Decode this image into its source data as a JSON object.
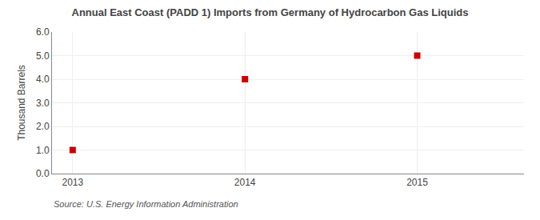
{
  "chart_data": {
    "type": "scatter",
    "title": "Annual East Coast (PADD 1) Imports from Germany of Hydrocarbon Gas Liquids",
    "ylabel": "Thousand Barrels",
    "annotations": [
      "Source: U.S. Energy Information Administration"
    ],
    "x": [
      2013,
      2014,
      2015
    ],
    "values": [
      1.0,
      4.0,
      5.0
    ],
    "color": "#cc0000",
    "marker": "square",
    "xlim": [
      2012.88,
      2015.62
    ],
    "xticks": [
      2013,
      2014,
      2015
    ],
    "ylim": [
      0.0,
      6.0
    ],
    "yticks": [
      {
        "value": 0.0,
        "label": "0.0"
      },
      {
        "value": 1.0,
        "label": "1.0"
      },
      {
        "value": 2.0,
        "label": "2.0"
      },
      {
        "value": 3.0,
        "label": "3.0"
      },
      {
        "value": 4.0,
        "label": "4.0"
      },
      {
        "value": 5.0,
        "label": "5.0"
      },
      {
        "value": 6.0,
        "label": "6.0"
      }
    ],
    "grid": true
  }
}
